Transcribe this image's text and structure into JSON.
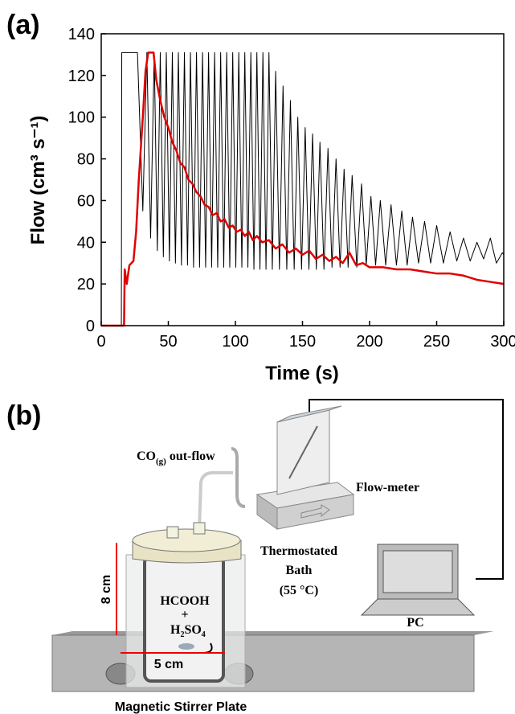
{
  "chart_data": {
    "type": "line",
    "panel_label": "(a)",
    "xlabel": "Time (s)",
    "ylabel": "Flow (cm³ s⁻¹)",
    "xlim": [
      0,
      300
    ],
    "xticks": [
      0,
      50,
      100,
      150,
      200,
      250,
      300
    ],
    "ylim": [
      0,
      140
    ],
    "yticks": [
      0,
      20,
      40,
      60,
      80,
      100,
      120,
      140
    ],
    "series": [
      {
        "color": "#000000",
        "width": 1,
        "x": [
          0,
          15,
          15.3,
          27,
          31,
          34,
          36.8,
          39.5,
          41.8,
          44,
          46.3,
          48.5,
          50.8,
          53,
          55.3,
          57.5,
          59.8,
          62,
          64.3,
          66.5,
          68.8,
          71,
          73.3,
          75.5,
          77.8,
          80,
          82.3,
          84.5,
          86.8,
          89,
          91.3,
          93.5,
          95.8,
          98,
          100.3,
          102.5,
          104.8,
          107,
          109.3,
          111.5,
          113.8,
          116,
          118.3,
          120.5,
          122.8,
          125,
          127.5,
          130,
          132.8,
          135.5,
          138.3,
          141,
          143.8,
          146.5,
          149.3,
          152,
          154.8,
          157.5,
          160.3,
          163,
          166,
          169,
          172,
          175,
          178,
          181,
          184,
          187,
          190.5,
          194,
          197.5,
          201,
          204.5,
          208,
          212,
          216,
          220,
          224,
          228,
          232,
          236.5,
          241,
          245.5,
          250,
          255,
          260,
          265,
          270,
          275,
          280,
          285,
          290,
          294.5,
          299,
          300
        ],
        "values": [
          0,
          0,
          131,
          131,
          55,
          131,
          42,
          131,
          36,
          131,
          33,
          131,
          31,
          131,
          30,
          131,
          29,
          131,
          29,
          131,
          28,
          131,
          28,
          131,
          28,
          131,
          28,
          131,
          28,
          131,
          28,
          131,
          28,
          131,
          28,
          131,
          28,
          131,
          28,
          131,
          27,
          131,
          27,
          131,
          27,
          131,
          27,
          122,
          27,
          115,
          27,
          108,
          27,
          100,
          27,
          95,
          27,
          92,
          27,
          88,
          27,
          85,
          28,
          80,
          28,
          75,
          28,
          72,
          28,
          68,
          29,
          62,
          29,
          60,
          29,
          58,
          29,
          55,
          29,
          52,
          30,
          50,
          30,
          48,
          30,
          45,
          31,
          42,
          31,
          40,
          32,
          42,
          30,
          35,
          34
        ]
      },
      {
        "color": "#e00000",
        "width": 2.5,
        "x": [
          0,
          17,
          17.5,
          19,
          21,
          24,
          26,
          28,
          31,
          33,
          35,
          39,
          41,
          44,
          47,
          50,
          53,
          56,
          59,
          62,
          65,
          68,
          71,
          74,
          77,
          80,
          83,
          86,
          89,
          92,
          95,
          98,
          101,
          104,
          107,
          110,
          113,
          116,
          120,
          125,
          130,
          135,
          140,
          145,
          150,
          155,
          160,
          165,
          170,
          175,
          180,
          185,
          190,
          195,
          200,
          210,
          220,
          230,
          240,
          250,
          260,
          270,
          280,
          290,
          300
        ],
        "values": [
          0,
          0,
          27,
          20,
          29,
          31,
          45,
          70,
          100,
          122,
          131,
          131,
          118,
          108,
          100,
          95,
          88,
          84,
          78,
          76,
          70,
          68,
          64,
          62,
          58,
          57,
          53,
          54,
          50,
          51,
          47,
          48,
          45,
          46,
          43,
          45,
          41,
          43,
          40,
          41,
          37,
          39,
          35,
          37,
          34,
          36,
          32,
          34,
          31,
          33,
          30,
          35,
          29,
          30,
          28,
          28,
          27,
          27,
          26,
          25,
          25,
          24,
          22,
          21,
          20
        ]
      }
    ]
  },
  "diagram": {
    "panel_label": "(b)",
    "outflow": {
      "main": "CO",
      "sub": "(g)",
      "rest": " out-flow"
    },
    "flowmeter": "Flow-meter",
    "bath": [
      "Thermostated",
      "Bath",
      "(55 °C)"
    ],
    "solution": {
      "acid": "HCOOH",
      "plus": "+",
      "h": "H",
      "h_sub": "2",
      "so": "SO",
      "so_sub": "4"
    },
    "height": "8 cm",
    "width": "5 cm",
    "pc": "PC",
    "plate": "Magnetic Stirrer Plate"
  }
}
